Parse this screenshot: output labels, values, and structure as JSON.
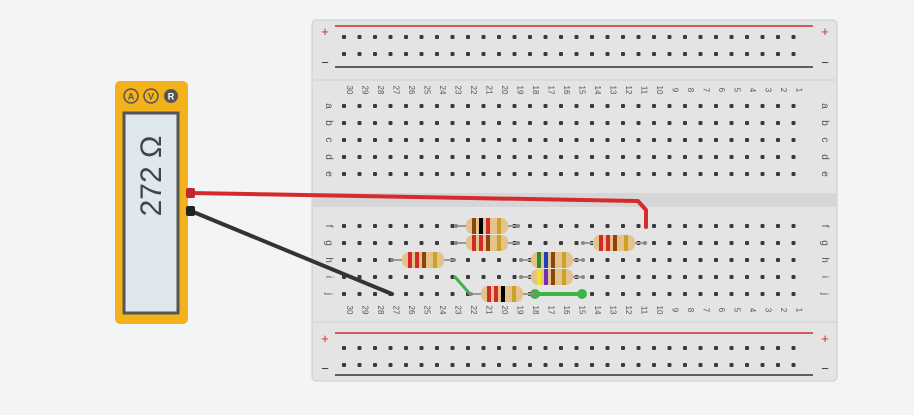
{
  "multimeter": {
    "reading": "272 Ω",
    "modes": [
      {
        "label": "A",
        "icon": "ammeter-mode-icon"
      },
      {
        "label": "V",
        "icon": "voltmeter-mode-icon"
      },
      {
        "label": "R",
        "icon": "ohmmeter-mode-icon"
      }
    ],
    "active_mode": "R",
    "body_color": "#f3b21b",
    "screen_color": "#dfe8ed"
  },
  "breadboard": {
    "columns": [
      "30",
      "29",
      "28",
      "27",
      "26",
      "25",
      "24",
      "23",
      "22",
      "21",
      "20",
      "19",
      "18",
      "17",
      "16",
      "15",
      "14",
      "13",
      "12",
      "11",
      "10",
      "9",
      "8",
      "7",
      "6",
      "5",
      "4",
      "3",
      "2",
      "1"
    ],
    "top_rows": [
      "a",
      "b",
      "c",
      "d",
      "e"
    ],
    "bottom_rows": [
      "f",
      "g",
      "h",
      "i",
      "j"
    ],
    "rail_plus": "+",
    "rail_minus": "−",
    "plus_rail_color": "#cc2e2e",
    "minus_rail_color": "#333333"
  },
  "probe_colors": {
    "red": "#d62b2b",
    "black": "#333333"
  },
  "jumper_colors": {
    "green": "#3fb24a"
  },
  "resistors": [
    {
      "id": "r1",
      "bands": [
        "#8b4513",
        "#000000",
        "#d22a2a",
        "#c9a227"
      ]
    },
    {
      "id": "r2",
      "bands": [
        "#d22a2a",
        "#d22a2a",
        "#8b4513",
        "#c9a227"
      ]
    },
    {
      "id": "r3",
      "bands": [
        "#d22a2a",
        "#d22a2a",
        "#8b4513",
        "#c9a227"
      ]
    },
    {
      "id": "r4",
      "bands": [
        "#d22a2a",
        "#d22a2a",
        "#000000",
        "#c9a227"
      ]
    },
    {
      "id": "r5",
      "bands": [
        "#2e8b2e",
        "#1f3fbf",
        "#8b4513",
        "#c9a227"
      ]
    },
    {
      "id": "r6",
      "bands": [
        "#f2e21a",
        "#7a2ab8",
        "#8b4513",
        "#c9a227"
      ]
    },
    {
      "id": "r7",
      "bands": [
        "#d22a2a",
        "#d22a2a",
        "#8b4513",
        "#c9a227"
      ]
    }
  ]
}
